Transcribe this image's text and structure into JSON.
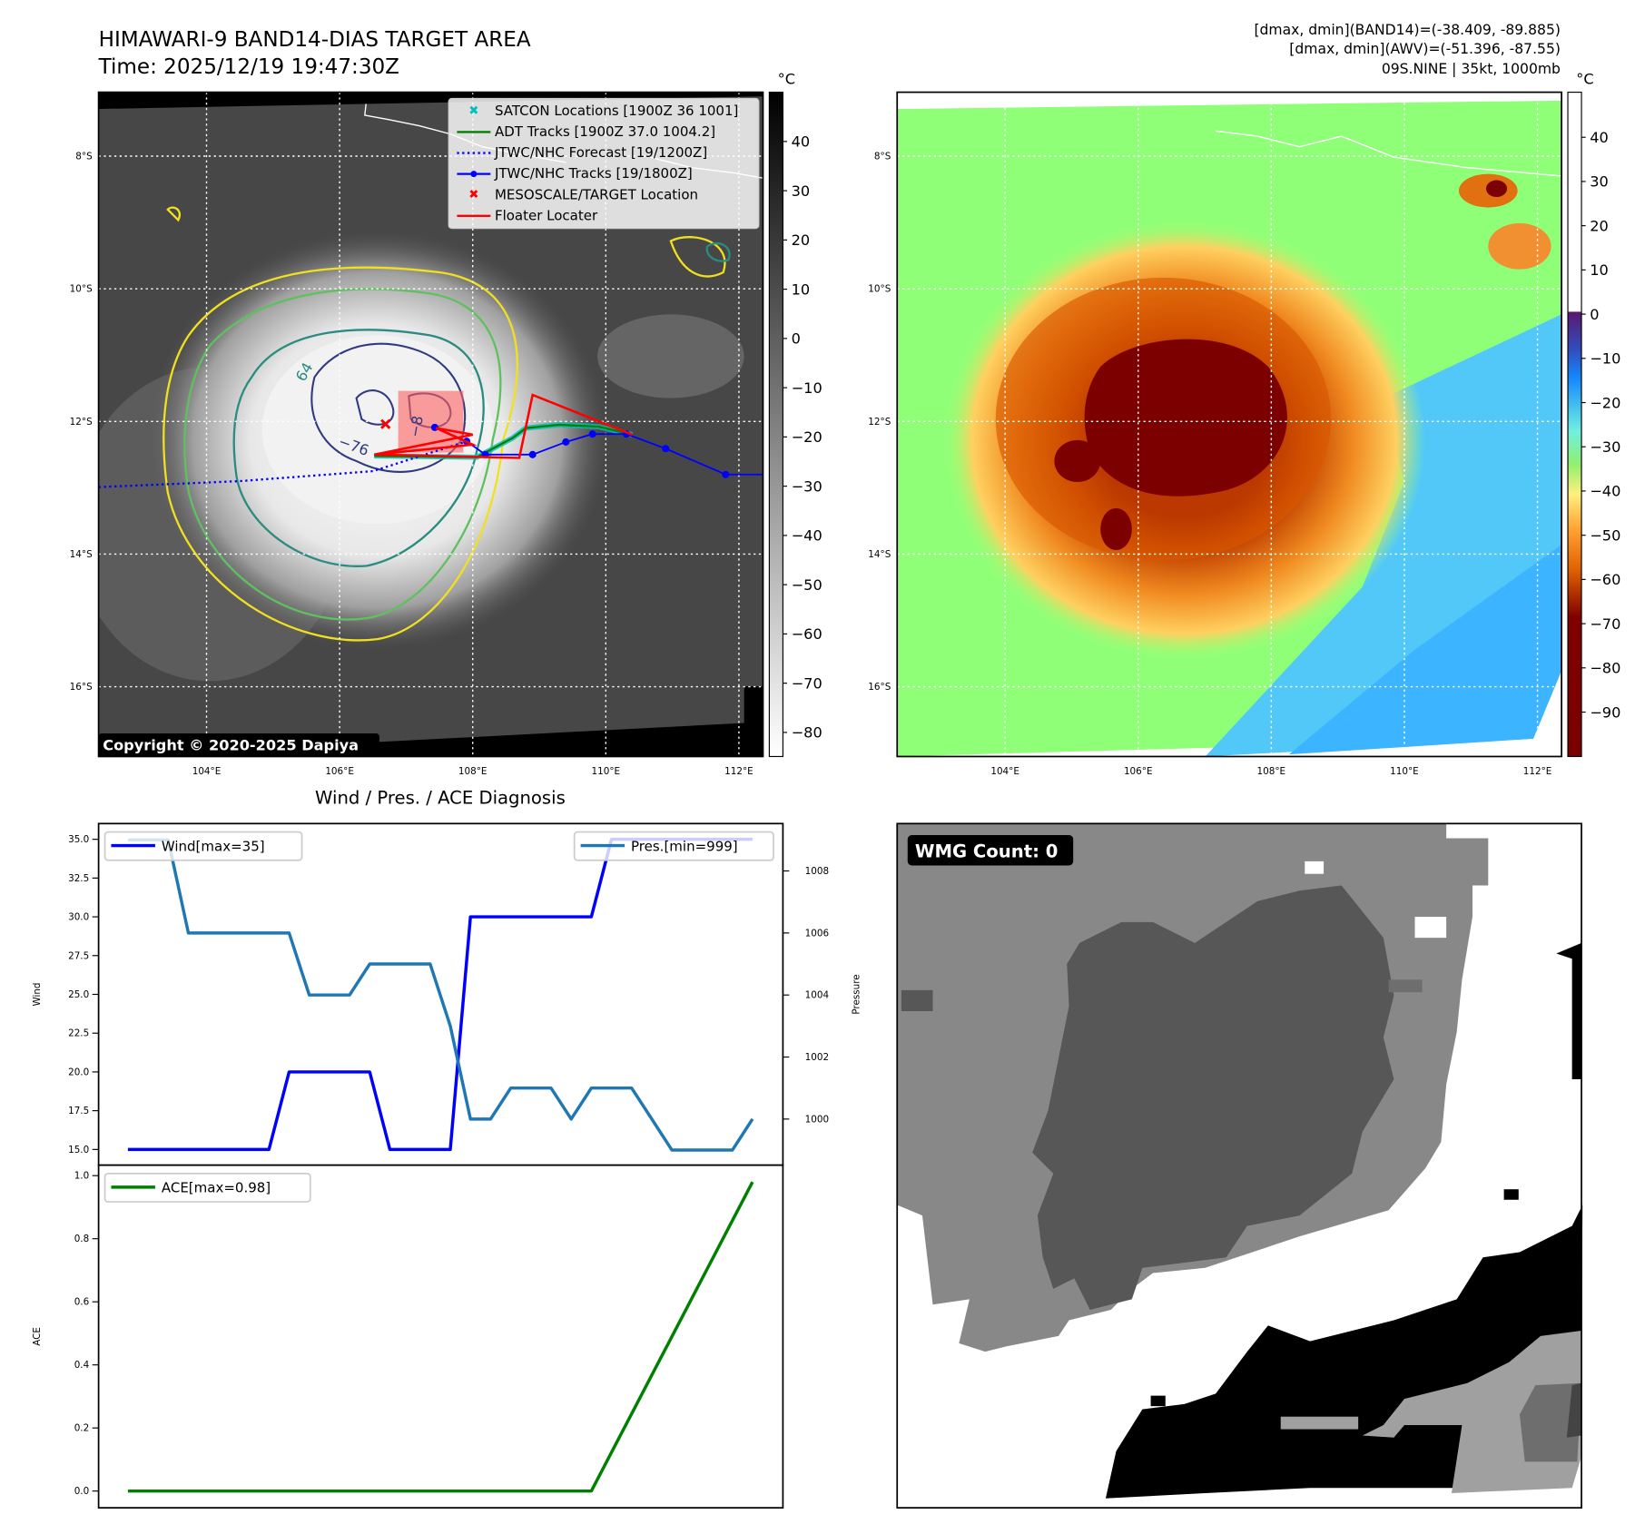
{
  "header": {
    "title_line1": "HIMAWARI-9 BAND14-DIAS TARGET AREA",
    "title_line2": "Time: 2025/12/19 19:47:30Z",
    "info_line1": "[dmax, dmin](BAND14)=(-38.409, -89.885)",
    "info_line2": "[dmax, dmin](AWV)=(-51.396, -87.55)",
    "info_line3": "09S.NINE | 35kt, 1000mb"
  },
  "map_left": {
    "lat_labels": [
      "8°S",
      "10°S",
      "12°S",
      "14°S",
      "16°S"
    ],
    "lon_labels": [
      "104°E",
      "106°E",
      "108°E",
      "110°E",
      "112°E"
    ],
    "copyright": "Copyright © 2020-2025 Dapiya",
    "contour_labels": [
      "−76",
      "64",
      "−8"
    ],
    "colorbar_unit": "°C",
    "colorbar_ticks": [
      "40",
      "30",
      "20",
      "10",
      "0",
      "−10",
      "−20",
      "−30",
      "−40",
      "−50",
      "−60",
      "−70",
      "−80"
    ],
    "legend": [
      {
        "label": "SATCON Locations [1900Z 36 1001]",
        "color": "#00bfbf",
        "marker": "x"
      },
      {
        "label": "ADT Tracks [1900Z 37.0 1004.2]",
        "color": "#008000",
        "marker": "line"
      },
      {
        "label": "JTWC/NHC Forecast [19/1200Z]",
        "color": "#0000ff",
        "marker": "dotted"
      },
      {
        "label": "JTWC/NHC Tracks [19/1800Z]",
        "color": "#0000ff",
        "marker": "line-dot"
      },
      {
        "label": "MESOSCALE/TARGET Location",
        "color": "#ff0000",
        "marker": "x"
      },
      {
        "label": "Floater Locater",
        "color": "#ff0000",
        "marker": "line"
      }
    ]
  },
  "map_right": {
    "lat_labels": [
      "8°S",
      "10°S",
      "12°S",
      "14°S",
      "16°S"
    ],
    "lon_labels": [
      "104°E",
      "106°E",
      "108°E",
      "110°E",
      "112°E"
    ],
    "colorbar_unit": "°C",
    "colorbar_ticks": [
      "40",
      "30",
      "20",
      "10",
      "0",
      "−10",
      "−20",
      "−30",
      "−40",
      "−50",
      "−60",
      "−70",
      "−80",
      "−90"
    ]
  },
  "wmg": {
    "label": "WMG Count: 0"
  },
  "chart_data": [
    {
      "type": "line",
      "title": "Wind / Pres. / ACE Diagnosis",
      "ylabel": "Wind",
      "y2label": "Pressure",
      "ylim": [
        14.5,
        35.5
      ],
      "y2lim": [
        998.9,
        1009.5
      ],
      "yticks": [
        "15.0",
        "17.5",
        "20.0",
        "22.5",
        "25.0",
        "27.5",
        "30.0",
        "32.5",
        "35.0"
      ],
      "y2ticks": [
        "1000",
        "1002",
        "1004",
        "1006",
        "1008"
      ],
      "x": [
        0,
        1,
        2,
        3,
        4,
        5,
        6,
        7,
        8,
        9,
        10,
        11,
        12,
        13,
        14,
        15,
        16,
        17,
        18,
        19,
        20,
        21,
        22,
        23,
        24,
        25,
        26,
        27,
        28,
        29,
        30,
        31
      ],
      "series": [
        {
          "name": "Wind[max=35]",
          "axis": "left",
          "color": "#0000ff",
          "values": [
            15,
            15,
            15,
            15,
            15,
            15,
            15,
            15,
            20,
            20,
            20,
            20,
            20,
            15,
            15,
            15,
            15,
            30,
            30,
            30,
            30,
            30,
            30,
            30,
            35,
            35,
            35,
            35,
            35,
            35,
            35,
            35
          ]
        },
        {
          "name": "Pres.[min=999]",
          "axis": "right",
          "color": "#1f77b4",
          "values": [
            1009,
            1009,
            1009,
            1006,
            1006,
            1006,
            1006,
            1006,
            1006,
            1004,
            1004,
            1004,
            1005,
            1005,
            1005,
            1005,
            1003,
            1000,
            1000,
            1001,
            1001,
            1001,
            1000,
            1001,
            1001,
            1001,
            1000,
            999,
            999,
            999,
            999,
            1000
          ]
        }
      ]
    },
    {
      "type": "line",
      "ylabel": "ACE",
      "ylim": [
        -0.05,
        1.03
      ],
      "yticks": [
        "0.0",
        "0.2",
        "0.4",
        "0.6",
        "0.8",
        "1.0"
      ],
      "x": [
        0,
        1,
        2,
        3,
        4,
        5,
        6,
        7,
        8,
        9,
        10,
        11,
        12,
        13,
        14,
        15,
        16,
        17,
        18,
        19,
        20,
        21,
        22,
        23,
        24,
        25,
        26,
        27,
        28,
        29,
        30,
        31
      ],
      "series": [
        {
          "name": "ACE[max=0.98]",
          "color": "#008000",
          "values": [
            0,
            0,
            0,
            0,
            0,
            0,
            0,
            0,
            0,
            0,
            0,
            0,
            0,
            0,
            0,
            0,
            0,
            0,
            0,
            0,
            0,
            0,
            0,
            0,
            0.1225,
            0.245,
            0.3675,
            0.49,
            0.6125,
            0.735,
            0.8575,
            0.98
          ]
        }
      ]
    }
  ],
  "tracks": {
    "jtwc_track": [
      [
        107.43,
        -12.09
      ],
      [
        107.91,
        -12.3
      ],
      [
        108.19,
        -12.5
      ],
      [
        108.9,
        -12.5
      ],
      [
        109.4,
        -12.31
      ],
      [
        109.8,
        -12.19
      ],
      [
        110.31,
        -12.19
      ],
      [
        110.9,
        -12.41
      ],
      [
        111.8,
        -12.8
      ],
      [
        112.36,
        -12.8
      ]
    ],
    "jtwc_forecast": [
      [
        102.38,
        -12.99
      ],
      [
        104.5,
        -12.9
      ],
      [
        106.5,
        -12.75
      ],
      [
        107.91,
        -12.3
      ]
    ],
    "adt_track": [
      [
        106.52,
        -12.52
      ],
      [
        108.06,
        -12.54
      ],
      [
        108.6,
        -12.25
      ],
      [
        108.8,
        -12.1
      ],
      [
        109.3,
        -12.05
      ],
      [
        109.9,
        -12.08
      ],
      [
        110.4,
        -12.2
      ]
    ],
    "floater": [
      [
        106.52,
        -12.5
      ],
      [
        108.0,
        -12.2
      ],
      [
        107.45,
        -12.1
      ],
      [
        108.0,
        -12.35
      ],
      [
        106.52,
        -12.5
      ],
      [
        108.7,
        -12.55
      ],
      [
        108.9,
        -11.6
      ],
      [
        110.4,
        -12.2
      ]
    ],
    "target": [
      106.69,
      -12.04
    ],
    "target_box": [
      106.88,
      -11.54,
      107.86,
      -12.47
    ]
  }
}
